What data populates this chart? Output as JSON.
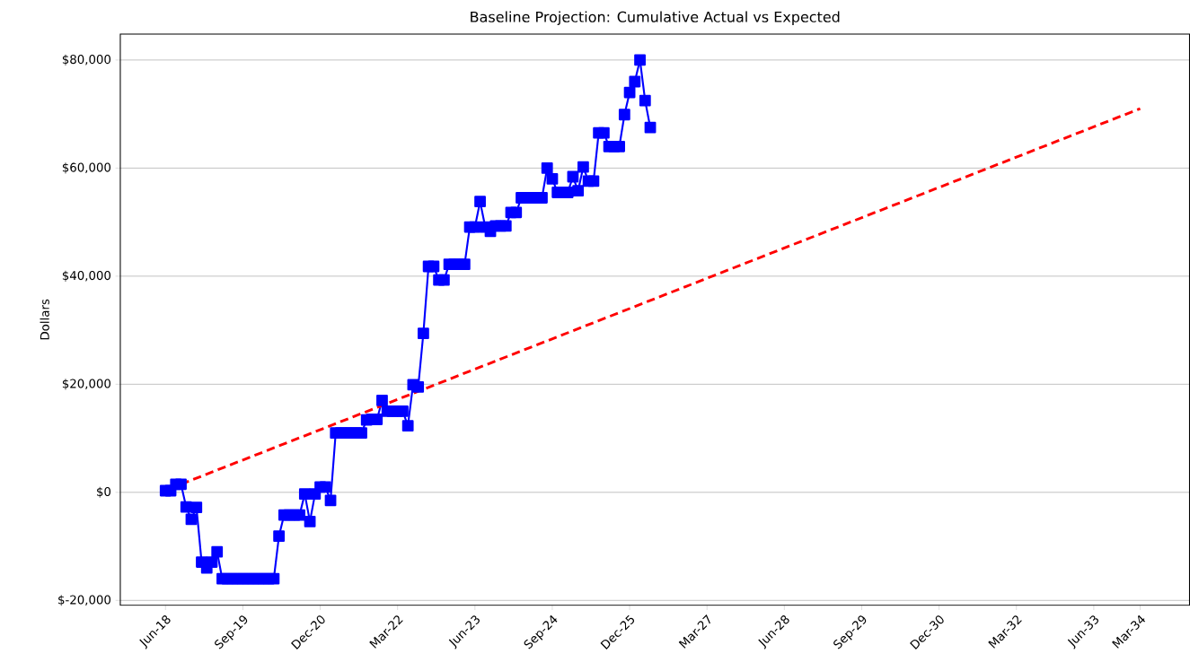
{
  "chart_data": {
    "type": "line",
    "title": "Baseline Projection: Cumulative Actual vs Expected",
    "ylabel": "Dollars",
    "xlim": [
      "2017-09-08",
      "2034-12-18"
    ],
    "ylim": [
      -20900,
      84800
    ],
    "xticks": [
      {
        "value": "2018-06",
        "label": "Jun-18"
      },
      {
        "value": "2019-09",
        "label": "Sep-19"
      },
      {
        "value": "2020-12",
        "label": "Dec-20"
      },
      {
        "value": "2022-03",
        "label": "Mar-22"
      },
      {
        "value": "2023-06",
        "label": "Jun-23"
      },
      {
        "value": "2024-09",
        "label": "Sep-24"
      },
      {
        "value": "2025-12",
        "label": "Dec-25"
      },
      {
        "value": "2027-03",
        "label": "Mar-27"
      },
      {
        "value": "2028-06",
        "label": "Jun-28"
      },
      {
        "value": "2029-09",
        "label": "Sep-29"
      },
      {
        "value": "2030-12",
        "label": "Dec-30"
      },
      {
        "value": "2032-03",
        "label": "Mar-32"
      },
      {
        "value": "2033-06",
        "label": "Jun-33"
      },
      {
        "value": "2034-03",
        "label": "Mar-34"
      }
    ],
    "yticks": [
      {
        "value": -20000,
        "label": "$-20,000"
      },
      {
        "value": 0,
        "label": "$0"
      },
      {
        "value": 20000,
        "label": "$20,000"
      },
      {
        "value": 40000,
        "label": "$40,000"
      },
      {
        "value": 60000,
        "label": "$60,000"
      },
      {
        "value": 80000,
        "label": "$80,000"
      }
    ],
    "grid": "y",
    "series": [
      {
        "color": "#0000ff",
        "marker": "square",
        "line_style": "solid",
        "x": [
          "2018-06",
          "2018-07",
          "2018-08",
          "2018-09",
          "2018-10",
          "2018-11",
          "2018-12",
          "2019-01",
          "2019-02",
          "2019-03",
          "2019-04",
          "2019-05",
          "2019-06",
          "2019-07",
          "2019-08",
          "2019-09",
          "2019-10",
          "2019-11",
          "2019-12",
          "2020-01",
          "2020-02",
          "2020-03",
          "2020-04",
          "2020-05",
          "2020-06",
          "2020-07",
          "2020-08",
          "2020-09",
          "2020-10",
          "2020-11",
          "2020-12",
          "2021-01",
          "2021-02",
          "2021-03",
          "2021-04",
          "2021-05",
          "2021-06",
          "2021-07",
          "2021-08",
          "2021-09",
          "2021-10",
          "2021-11",
          "2021-12",
          "2022-01",
          "2022-02",
          "2022-03",
          "2022-04",
          "2022-05",
          "2022-06",
          "2022-07",
          "2022-08",
          "2022-09",
          "2022-10",
          "2022-11",
          "2022-12",
          "2023-01",
          "2023-02",
          "2023-03",
          "2023-04",
          "2023-05",
          "2023-06",
          "2023-07",
          "2023-08",
          "2023-09",
          "2023-10",
          "2023-11",
          "2023-12",
          "2024-01",
          "2024-02",
          "2024-03",
          "2024-04",
          "2024-05",
          "2024-06",
          "2024-07",
          "2024-08",
          "2024-09",
          "2024-10",
          "2024-11",
          "2024-12",
          "2025-01",
          "2025-02",
          "2025-03",
          "2025-04",
          "2025-05",
          "2025-06",
          "2025-07",
          "2025-08",
          "2025-09",
          "2025-10",
          "2025-11",
          "2025-12",
          "2026-01",
          "2026-02",
          "2026-03",
          "2026-04"
        ],
        "values": [
          300,
          300,
          1500,
          1500,
          -2700,
          -5000,
          -2800,
          -12900,
          -14000,
          -12900,
          -11000,
          -16000,
          -16000,
          -16000,
          -16000,
          -16000,
          -16000,
          -16000,
          -16000,
          -16000,
          -16000,
          -16000,
          -8100,
          -4200,
          -4200,
          -4200,
          -4200,
          -300,
          -5400,
          -300,
          1000,
          1000,
          -1500,
          11000,
          11000,
          11000,
          11000,
          11000,
          11000,
          13400,
          13500,
          13500,
          17000,
          15000,
          15000,
          15000,
          15000,
          12300,
          19900,
          19500,
          29400,
          41800,
          41800,
          39300,
          39300,
          42200,
          42200,
          42200,
          42200,
          49100,
          49100,
          53800,
          49100,
          48300,
          49300,
          49300,
          49300,
          51800,
          51800,
          54500,
          54500,
          54500,
          54500,
          54500,
          60000,
          58000,
          55500,
          55500,
          55500,
          58400,
          55800,
          60200,
          57600,
          57600,
          66500,
          66500,
          64000,
          64000,
          64000,
          69900,
          74000,
          76000,
          80000,
          72500,
          67500
        ]
      },
      {
        "color": "#ff0000",
        "marker": "none",
        "line_style": "dashed",
        "x": [
          "2018-09",
          "2034-03"
        ],
        "values": [
          1500,
          71000
        ]
      }
    ]
  }
}
